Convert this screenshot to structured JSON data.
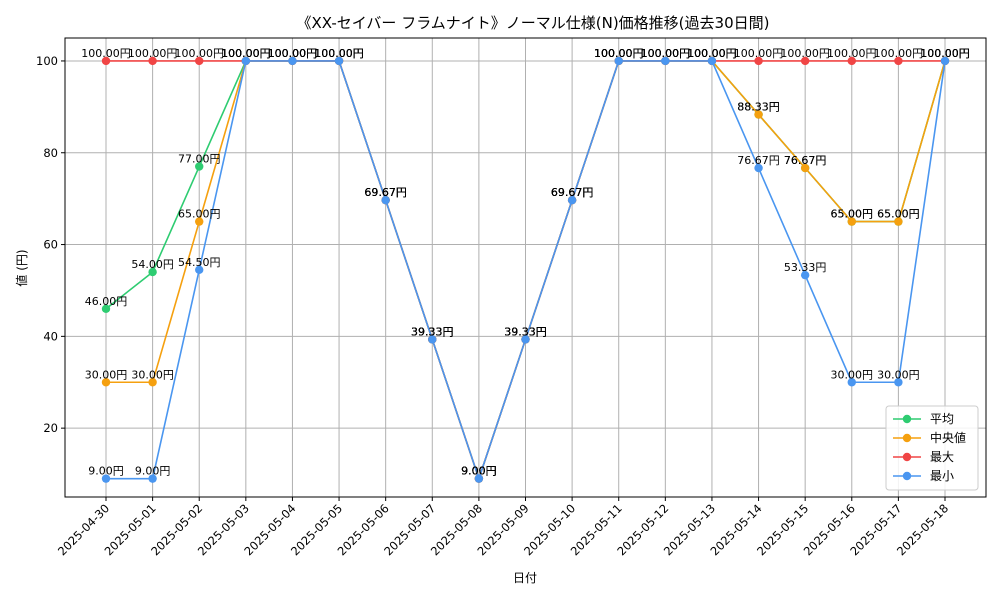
{
  "chart_data": {
    "type": "line",
    "title": "《XX-セイバー フラムナイト》ノーマル仕様(N)価格推移(過去30日間)",
    "xlabel": "日付",
    "ylabel": "値 (円)",
    "ylim": [
      5,
      105
    ],
    "yticks": [
      20,
      40,
      60,
      80,
      100
    ],
    "grid": true,
    "legend_position": "bottom-right",
    "categories": [
      "2025-04-30",
      "2025-05-01",
      "2025-05-02",
      "2025-05-03",
      "2025-05-04",
      "2025-05-05",
      "2025-05-06",
      "2025-05-07",
      "2025-05-08",
      "2025-05-09",
      "2025-05-10",
      "2025-05-11",
      "2025-05-12",
      "2025-05-13",
      "2025-05-14",
      "2025-05-15",
      "2025-05-16",
      "2025-05-17",
      "2025-05-18"
    ],
    "series": [
      {
        "name": "平均",
        "color": "#2ecc71",
        "values": [
          46.0,
          54.0,
          77.0,
          100.0,
          100.0,
          100.0,
          69.67,
          39.33,
          9.0,
          39.33,
          69.67,
          100.0,
          100.0,
          100.0,
          88.33,
          76.67,
          65.0,
          65.0,
          100.0
        ]
      },
      {
        "name": "中央値",
        "color": "#f5a00f",
        "values": [
          30.0,
          30.0,
          65.0,
          100.0,
          100.0,
          100.0,
          69.67,
          39.33,
          9.0,
          39.33,
          69.67,
          100.0,
          100.0,
          100.0,
          88.33,
          76.67,
          65.0,
          65.0,
          100.0
        ]
      },
      {
        "name": "最大",
        "color": "#f04545",
        "values": [
          100.0,
          100.0,
          100.0,
          100.0,
          100.0,
          100.0,
          69.67,
          39.33,
          9.0,
          39.33,
          69.67,
          100.0,
          100.0,
          100.0,
          100.0,
          100.0,
          100.0,
          100.0,
          100.0
        ]
      },
      {
        "name": "最小",
        "color": "#4a96f0",
        "values": [
          9.0,
          9.0,
          54.5,
          100.0,
          100.0,
          100.0,
          69.67,
          39.33,
          9.0,
          39.33,
          69.67,
          100.0,
          100.0,
          100.0,
          76.67,
          53.33,
          30.0,
          30.0,
          100.0
        ]
      }
    ],
    "value_suffix": "円"
  }
}
